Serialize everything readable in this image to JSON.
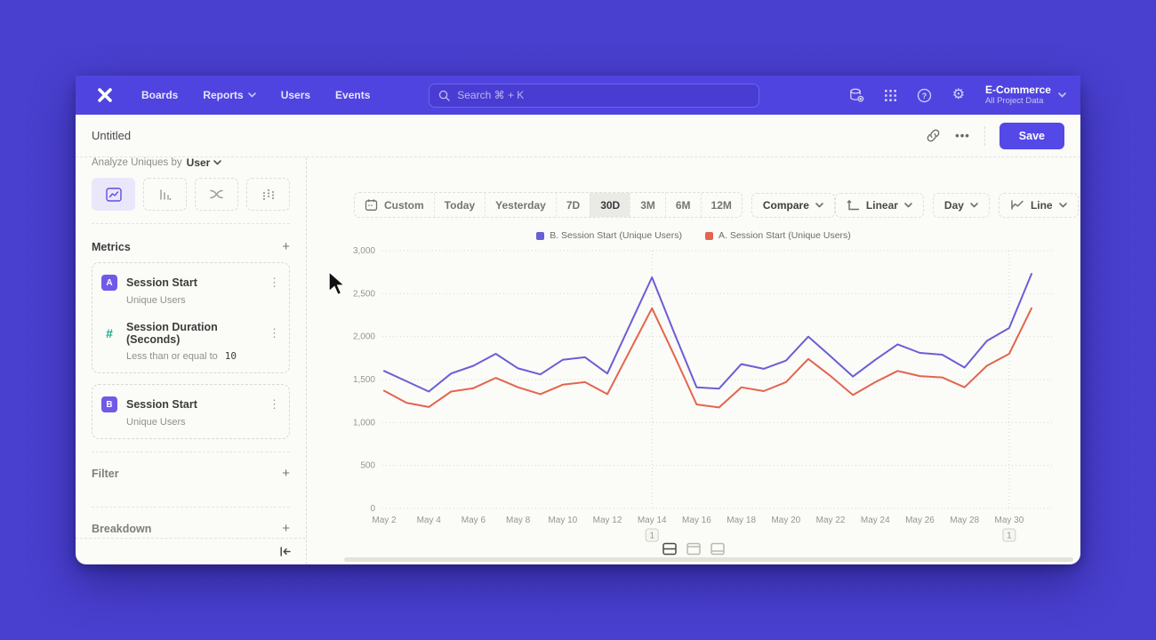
{
  "nav": {
    "items": [
      {
        "label": "Boards"
      },
      {
        "label": "Reports"
      },
      {
        "label": "Users"
      },
      {
        "label": "Events"
      }
    ],
    "search": {
      "placeholder": "Search  ⌘ + K"
    },
    "project": {
      "name": "E-Commerce",
      "scope": "All Project Data"
    }
  },
  "titlebar": {
    "title": "Untitled",
    "ellipsis": "•••",
    "save_label": "Save"
  },
  "sidebar": {
    "analyze_prefix": "Analyze Uniques by",
    "analyze_value": "User",
    "metrics_title": "Metrics",
    "metrics": [
      {
        "badge": "A",
        "title": "Session Start",
        "subtitle": "Unique Users"
      },
      {
        "badge": "#",
        "title": "Session Duration (Seconds)",
        "subtitle_prefix": "Less than or equal to",
        "subtitle_value": "10"
      },
      {
        "badge": "B",
        "title": "Session Start",
        "subtitle": "Unique Users"
      }
    ],
    "sections": [
      {
        "label": "Filter"
      },
      {
        "label": "Breakdown"
      }
    ]
  },
  "toolbar": {
    "ranges": [
      "Custom",
      "Today",
      "Yesterday",
      "7D",
      "30D",
      "3M",
      "6M",
      "12M"
    ],
    "selected_range": "30D",
    "compare_label": "Compare",
    "scale_label": "Linear",
    "interval_label": "Day",
    "charttype_label": "Line"
  },
  "colors": {
    "backdrop": "#4e44d9",
    "nav_bg": "#4f44e0",
    "accent": "#5448e6",
    "metric_badge": "#7159e8",
    "numeric_icon": "#1ca58a",
    "series_b": "#6a5ed6",
    "series_a": "#e2654e"
  },
  "chart_data": {
    "type": "line",
    "title": "",
    "xlabel": "",
    "ylabel": "",
    "ylim": [
      0,
      3000
    ],
    "yticks": [
      0,
      500,
      1000,
      1500,
      2000,
      2500,
      3000
    ],
    "grid": "horizontal-dotted",
    "legend_position": "top-center",
    "x_tick_interval": 2,
    "x": [
      "May 2",
      "May 3",
      "May 4",
      "May 5",
      "May 6",
      "May 7",
      "May 8",
      "May 9",
      "May 10",
      "May 11",
      "May 12",
      "May 13",
      "May 14",
      "May 15",
      "May 16",
      "May 17",
      "May 18",
      "May 19",
      "May 20",
      "May 21",
      "May 22",
      "May 23",
      "May 24",
      "May 25",
      "May 26",
      "May 27",
      "May 28",
      "May 29",
      "May 30",
      "May 31"
    ],
    "series": [
      {
        "name": "B. Session Start (Unique Users)",
        "color": "#6a5ed6",
        "values": [
          1600,
          1480,
          1360,
          1570,
          1660,
          1800,
          1630,
          1560,
          1730,
          1760,
          1570,
          2130,
          2690,
          2040,
          1410,
          1395,
          1680,
          1625,
          1720,
          2000,
          1770,
          1535,
          1730,
          1910,
          1810,
          1790,
          1640,
          1950,
          2100,
          2730
        ]
      },
      {
        "name": "A. Session Start (Unique Users)",
        "color": "#e2654e",
        "values": [
          1370,
          1230,
          1180,
          1360,
          1400,
          1520,
          1410,
          1330,
          1440,
          1470,
          1330,
          1830,
          2330,
          1780,
          1210,
          1175,
          1410,
          1365,
          1470,
          1740,
          1540,
          1320,
          1470,
          1600,
          1540,
          1525,
          1410,
          1660,
          1800,
          2330
        ]
      }
    ],
    "annotations": [
      {
        "date": "May 14",
        "label": "1"
      },
      {
        "date": "May 30",
        "label": "1"
      }
    ]
  }
}
